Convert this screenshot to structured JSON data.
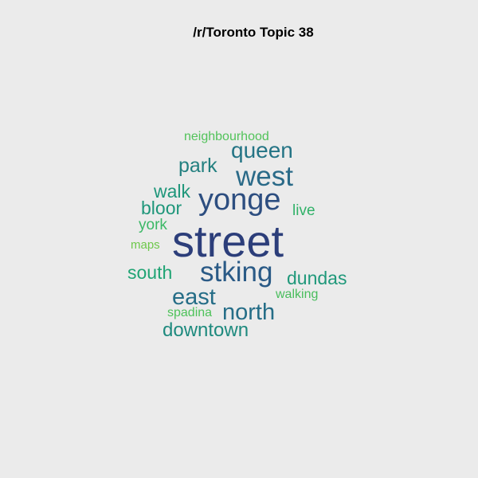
{
  "title": "/r/Toronto Topic 38",
  "words": [
    {
      "text": "street",
      "color": "#2c3e7a"
    },
    {
      "text": "yonge",
      "color": "#2d4e80"
    },
    {
      "text": "stking",
      "color": "#2a5a86"
    },
    {
      "text": "west",
      "color": "#2a6a88"
    },
    {
      "text": "queen",
      "color": "#247485"
    },
    {
      "text": "north",
      "color": "#256d87"
    },
    {
      "text": "east",
      "color": "#256d87"
    },
    {
      "text": "park",
      "color": "#238080"
    },
    {
      "text": "downtown",
      "color": "#1e8a7e"
    },
    {
      "text": "dundas",
      "color": "#1f987a"
    },
    {
      "text": "walk",
      "color": "#1e967a"
    },
    {
      "text": "bloor",
      "color": "#1e967a"
    },
    {
      "text": "south",
      "color": "#20a474"
    },
    {
      "text": "live",
      "color": "#30b168"
    },
    {
      "text": "york",
      "color": "#3bb866"
    },
    {
      "text": "walking",
      "color": "#48bd5c"
    },
    {
      "text": "spadina",
      "color": "#4ec25a"
    },
    {
      "text": "neighbourhood",
      "color": "#52c35a"
    },
    {
      "text": "maps",
      "color": "#6dc84b"
    }
  ]
}
